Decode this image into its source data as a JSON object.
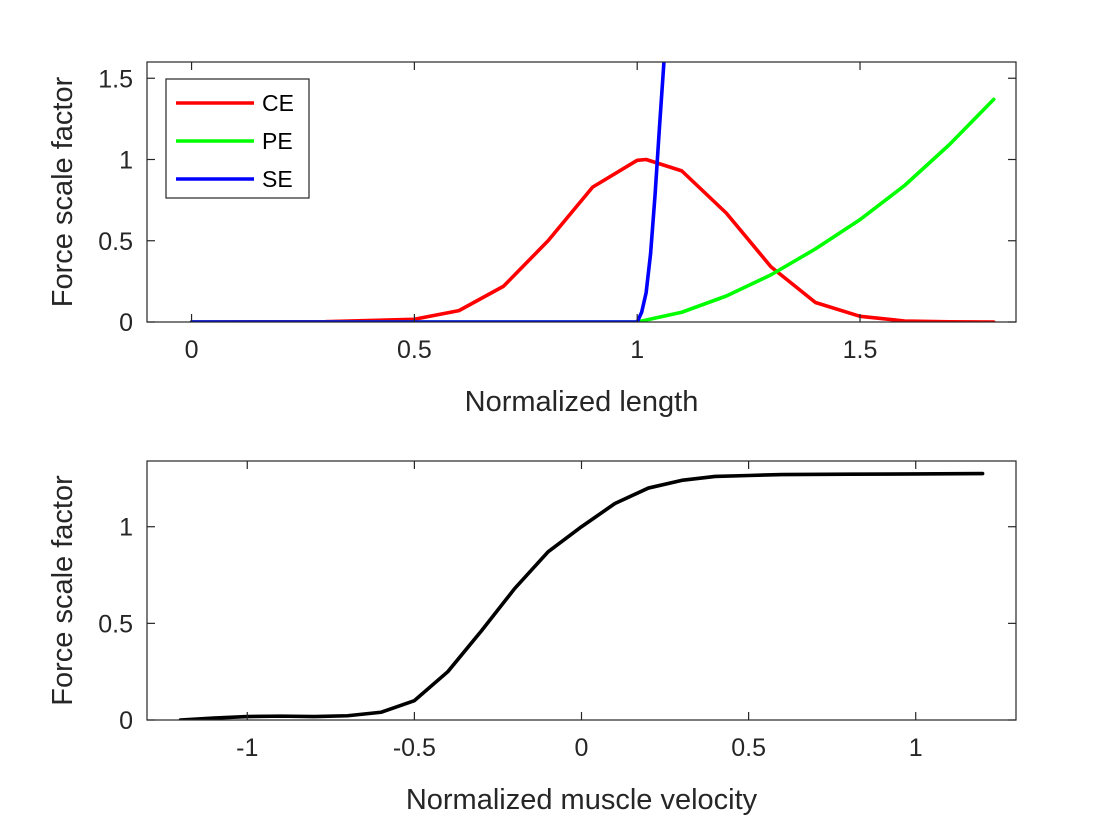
{
  "chart_data": [
    {
      "type": "line",
      "xlabel": "Normalized length",
      "ylabel": "Force scale factor",
      "xlim": [
        -0.1,
        1.85
      ],
      "ylim": [
        0,
        1.6
      ],
      "xticks": [
        0,
        0.5,
        1,
        1.5
      ],
      "xtick_labels": [
        "0",
        "0.5",
        "1",
        "1.5"
      ],
      "yticks": [
        0,
        0.5,
        1,
        1.5
      ],
      "ytick_labels": [
        "0",
        "0.5",
        "1",
        "1.5"
      ],
      "legend_position": "top-left",
      "grid": false,
      "series": [
        {
          "name": "CE",
          "color": "#ff0000",
          "x": [
            0,
            0.3,
            0.5,
            0.6,
            0.7,
            0.8,
            0.9,
            1.0,
            1.02,
            1.1,
            1.2,
            1.3,
            1.4,
            1.5,
            1.6,
            1.7,
            1.8
          ],
          "y": [
            0,
            0.002,
            0.017,
            0.07,
            0.22,
            0.5,
            0.83,
            0.995,
            1.0,
            0.93,
            0.67,
            0.34,
            0.12,
            0.035,
            0.006,
            0.001,
            0.0
          ]
        },
        {
          "name": "PE",
          "color": "#00ff00",
          "x": [
            0,
            1.0,
            1.1,
            1.2,
            1.3,
            1.4,
            1.5,
            1.6,
            1.7,
            1.8
          ],
          "y": [
            0,
            0,
            0.06,
            0.16,
            0.29,
            0.45,
            0.63,
            0.84,
            1.09,
            1.37
          ]
        },
        {
          "name": "SE",
          "color": "#0000ff",
          "x": [
            0,
            1.0,
            1.01,
            1.02,
            1.03,
            1.04,
            1.05,
            1.06
          ],
          "y": [
            0,
            0,
            0.06,
            0.18,
            0.42,
            0.78,
            1.2,
            1.6
          ]
        }
      ]
    },
    {
      "type": "line",
      "xlabel": "Normalized muscle velocity",
      "ylabel": "Force scale factor",
      "xlim": [
        -1.3,
        1.3
      ],
      "ylim": [
        0,
        1.34
      ],
      "xticks": [
        -1,
        -0.5,
        0,
        0.5,
        1
      ],
      "xtick_labels": [
        "-1",
        "-0.5",
        "0",
        "0.5",
        "1"
      ],
      "yticks": [
        0,
        0.5,
        1
      ],
      "ytick_labels": [
        "0",
        "0.5",
        "1"
      ],
      "grid": false,
      "series": [
        {
          "color": "#000000",
          "x": [
            -1.2,
            -1.1,
            -1.0,
            -0.9,
            -0.8,
            -0.7,
            -0.6,
            -0.5,
            -0.4,
            -0.3,
            -0.2,
            -0.1,
            0,
            0.1,
            0.2,
            0.3,
            0.4,
            0.5,
            0.6,
            0.8,
            1.0,
            1.2
          ],
          "y": [
            0,
            0.01,
            0.018,
            0.02,
            0.018,
            0.022,
            0.04,
            0.1,
            0.25,
            0.46,
            0.68,
            0.87,
            1.0,
            1.12,
            1.2,
            1.24,
            1.26,
            1.265,
            1.27,
            1.272,
            1.273,
            1.275
          ]
        }
      ]
    }
  ]
}
